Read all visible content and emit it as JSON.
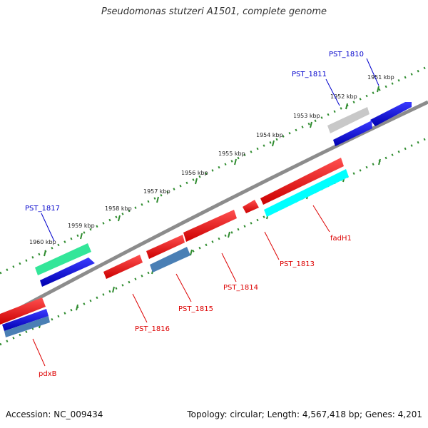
{
  "title": "Pseudomonas stutzeri A1501, complete genome",
  "footer": {
    "accession": "Accession: NC_009434",
    "topology": "Topology: circular; Length: 4,567,418 bp; Genes: 4,201"
  },
  "colors": {
    "backbone": "#8c8c8c",
    "scale_ticks": "#2e8b2e",
    "forward_label": "#0000cc",
    "reverse_label": "#dd0000",
    "red": "#ff0000",
    "blue": "#0000ee",
    "grey": "#c8c8c8",
    "green": "#33e699",
    "cyan": "#00ffff",
    "steel": "#4a7fb5"
  },
  "scale_labels": [
    "1951 kbp",
    "1952 kbp",
    "1953 kbp",
    "1954 kbp",
    "1955 kbp",
    "1956 kbp",
    "1957 kbp",
    "1958 kbp",
    "1959 kbp",
    "1960 kbp"
  ],
  "gene_labels": {
    "forward": [
      "PST_1810",
      "PST_1811",
      "PST_1817"
    ],
    "reverse": [
      "fadH1",
      "PST_1813",
      "PST_1814",
      "PST_1815",
      "PST_1816",
      "pdxB"
    ]
  }
}
